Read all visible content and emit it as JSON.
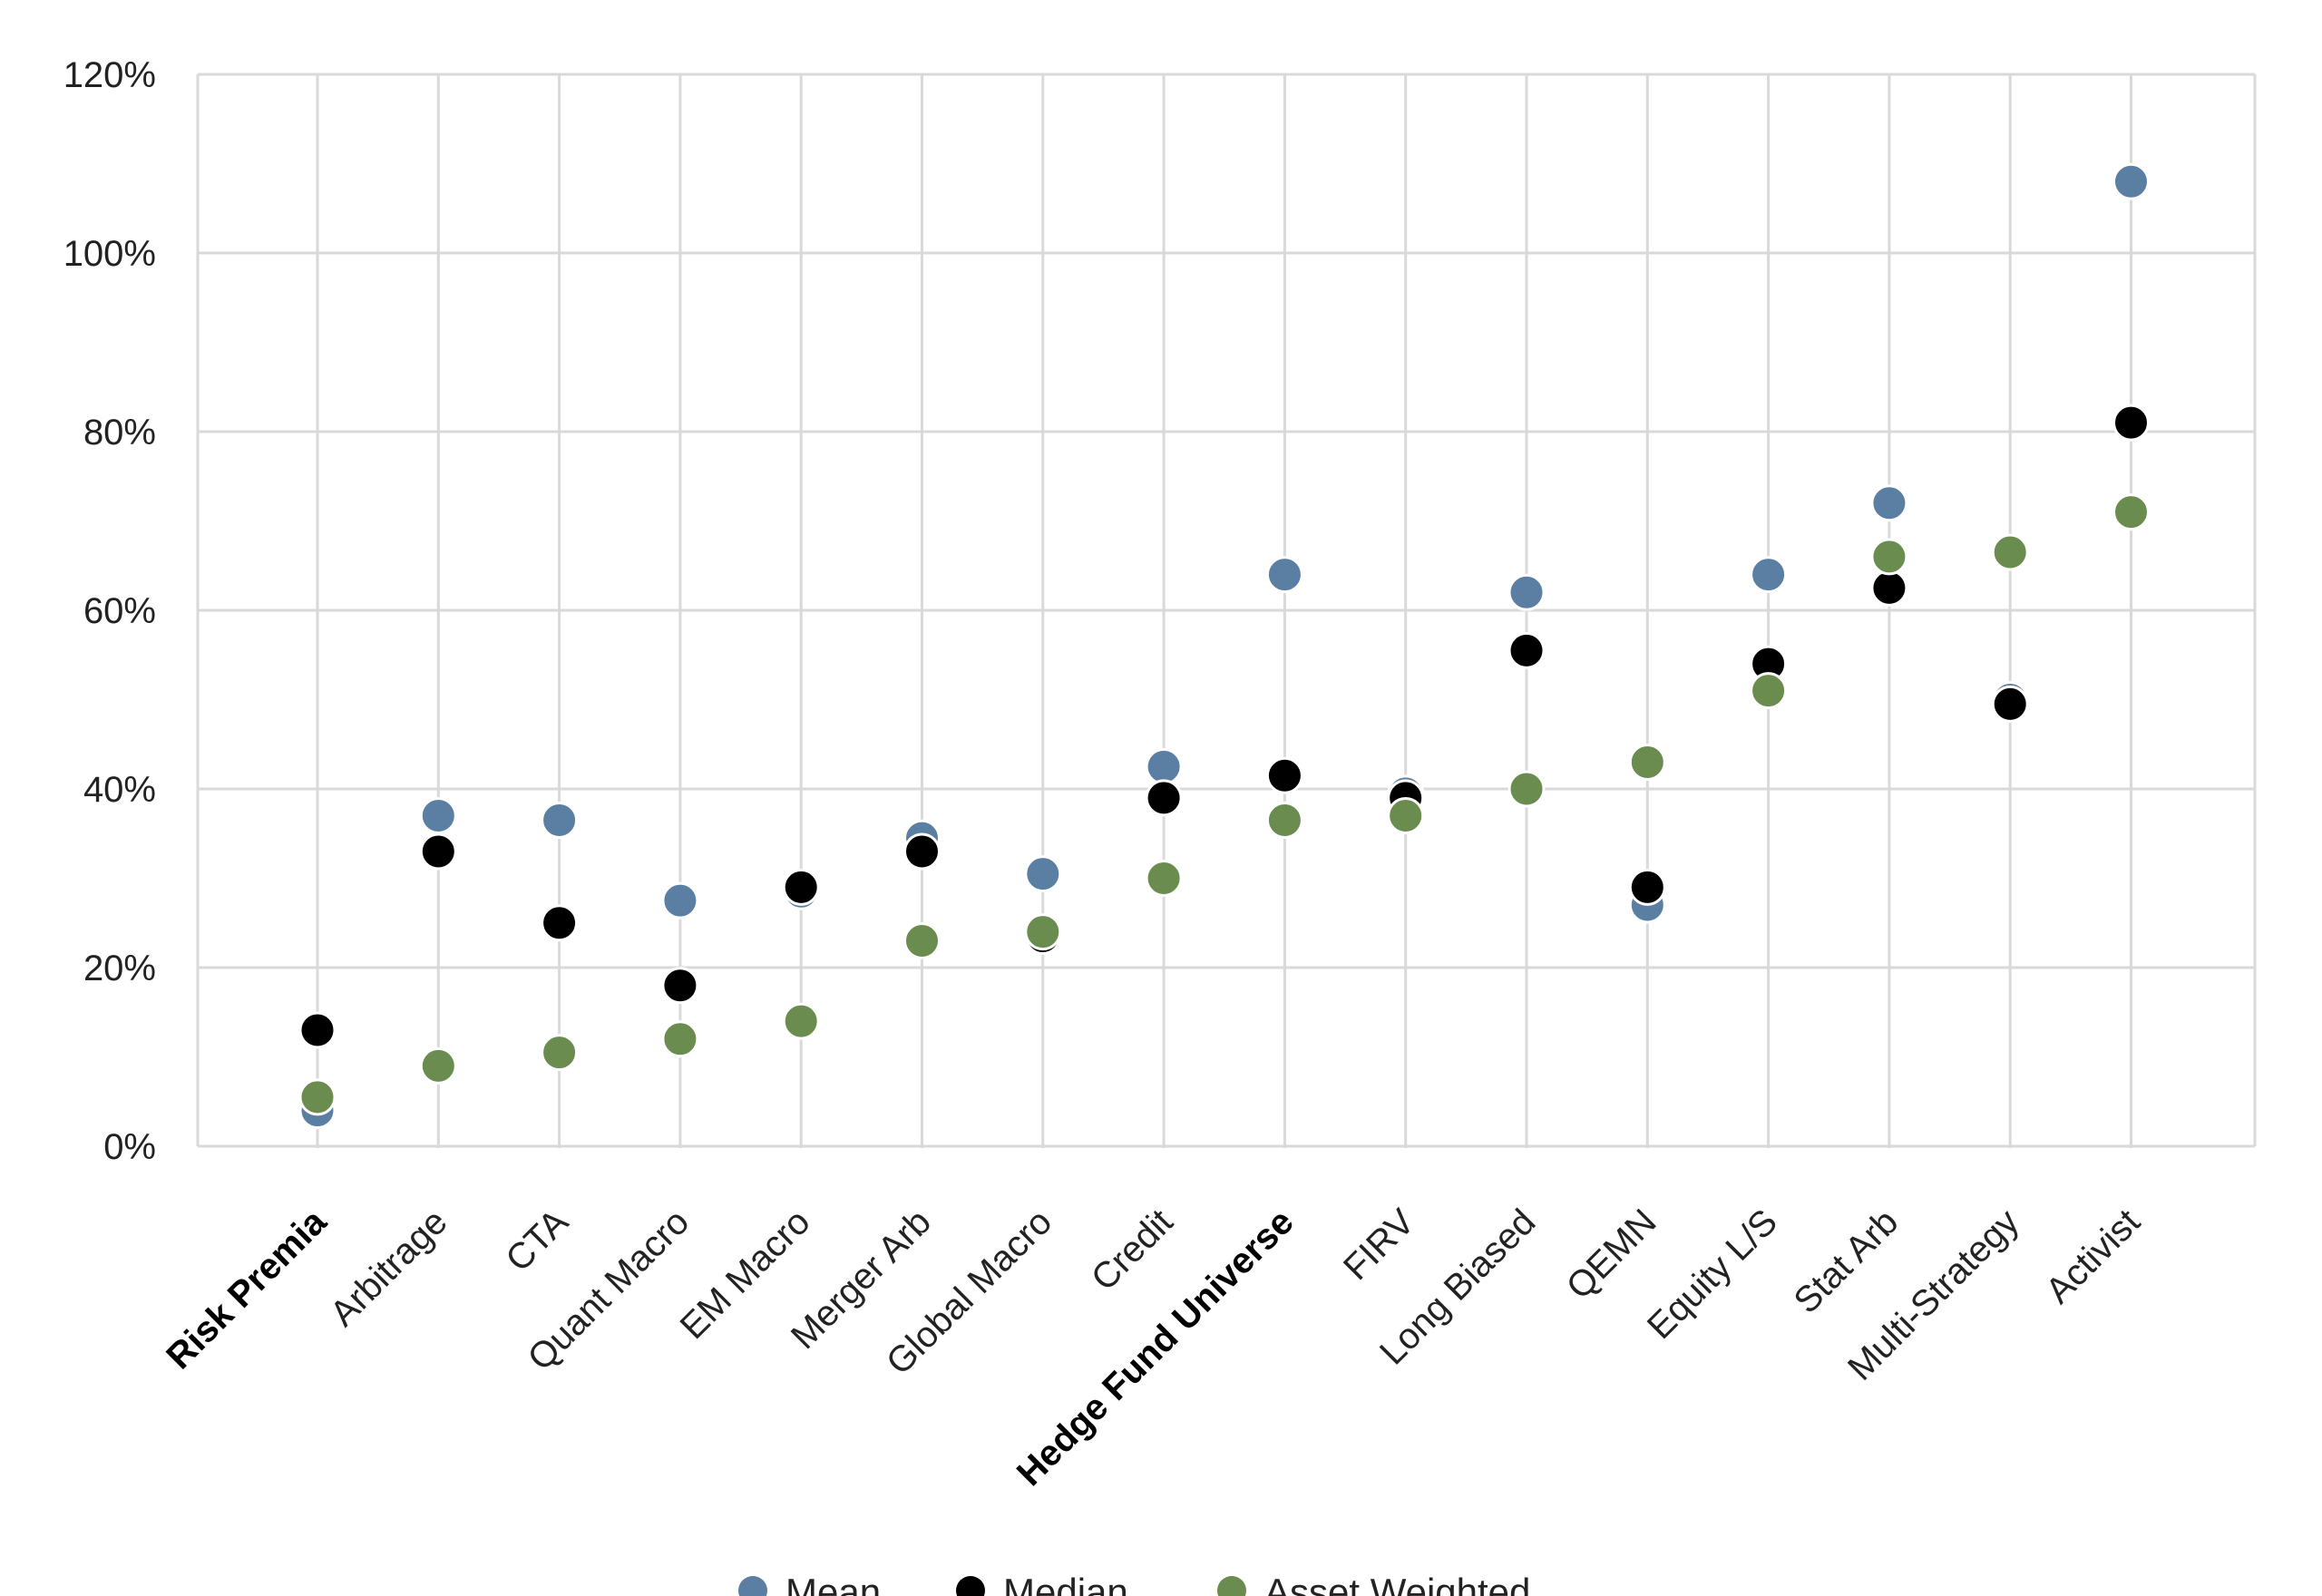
{
  "chart_data": {
    "type": "scatter",
    "title": "",
    "xlabel": "",
    "ylabel": "",
    "ylim": [
      0,
      120
    ],
    "yticks": [
      "0%",
      "20%",
      "40%",
      "60%",
      "80%",
      "100%",
      "120%"
    ],
    "ytick_values": [
      0,
      20,
      40,
      60,
      80,
      100,
      120
    ],
    "grid": true,
    "legend_position": "bottom",
    "categories": [
      "Risk Premia",
      "Arbitrage",
      "CTA",
      "Quant Macro",
      "EM Macro",
      "Merger Arb",
      "Global Macro",
      "Credit",
      "Hedge Fund Universe",
      "FIRV",
      "Long Biased",
      "QEMN",
      "Equity L/S",
      "Stat Arb",
      "Multi-Strategy",
      "Activist"
    ],
    "bold_categories": [
      "Risk Premia",
      "Hedge Fund Universe"
    ],
    "series": [
      {
        "name": "Mean",
        "color": "#5b7fa3",
        "values": [
          4,
          37,
          36.5,
          27.5,
          28.5,
          34.5,
          30.5,
          42.5,
          64,
          39.5,
          62,
          27,
          64,
          72,
          50,
          108
        ]
      },
      {
        "name": "Median",
        "color": "#000000",
        "values": [
          13,
          33,
          25,
          18,
          29,
          33,
          23.5,
          39,
          41.5,
          39,
          55.5,
          29,
          54,
          62.5,
          49.5,
          81
        ]
      },
      {
        "name": "Asset Weighted",
        "color": "#6a8c4e",
        "values": [
          5.5,
          9,
          10.5,
          12,
          14,
          23,
          24,
          30,
          36.5,
          37,
          40,
          43,
          51,
          66,
          66.5,
          71
        ]
      }
    ]
  }
}
